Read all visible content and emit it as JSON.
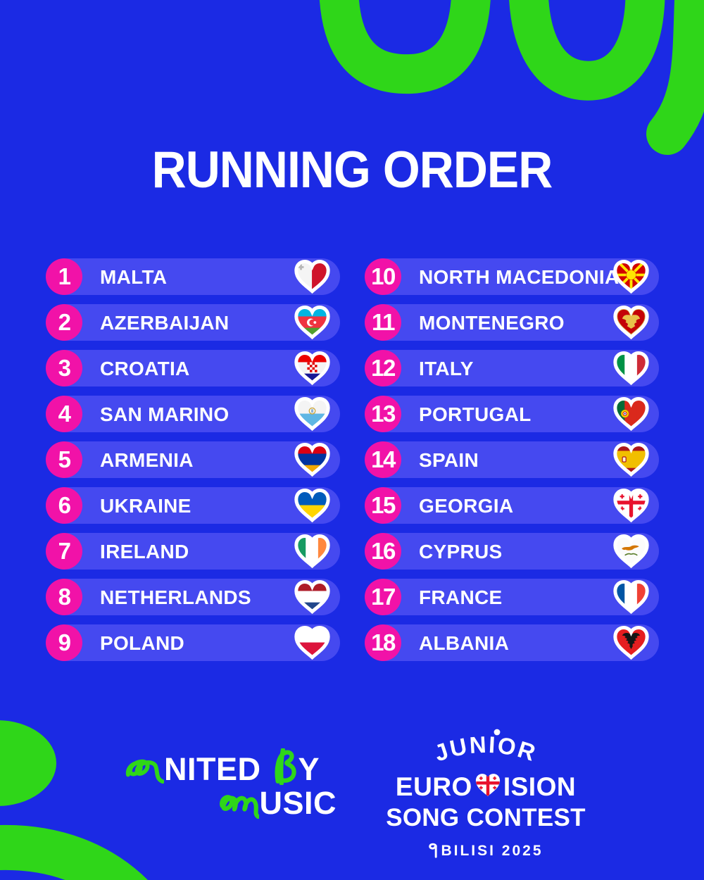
{
  "colors": {
    "background": "#1b2ae4",
    "pill": "#4549f0",
    "number_badge_pink": "#f112a8",
    "brand_green": "#2fd619",
    "text_white": "#ffffff"
  },
  "title": "RUNNING ORDER",
  "running_order": {
    "left": [
      {
        "num": "1",
        "country": "MALTA",
        "flag": "mt"
      },
      {
        "num": "2",
        "country": "AZERBAIJAN",
        "flag": "az"
      },
      {
        "num": "3",
        "country": "CROATIA",
        "flag": "hr"
      },
      {
        "num": "4",
        "country": "SAN MARINO",
        "flag": "sm"
      },
      {
        "num": "5",
        "country": "ARMENIA",
        "flag": "am"
      },
      {
        "num": "6",
        "country": "UKRAINE",
        "flag": "ua"
      },
      {
        "num": "7",
        "country": "IRELAND",
        "flag": "ie"
      },
      {
        "num": "8",
        "country": "NETHERLANDS",
        "flag": "nl"
      },
      {
        "num": "9",
        "country": "POLAND",
        "flag": "pl"
      }
    ],
    "right": [
      {
        "num": "10",
        "country": "NORTH MACEDONIA",
        "flag": "mk"
      },
      {
        "num": "11",
        "country": "MONTENEGRO",
        "flag": "me"
      },
      {
        "num": "12",
        "country": "ITALY",
        "flag": "it"
      },
      {
        "num": "13",
        "country": "PORTUGAL",
        "flag": "pt"
      },
      {
        "num": "14",
        "country": "SPAIN",
        "flag": "es"
      },
      {
        "num": "15",
        "country": "GEORGIA",
        "flag": "ge"
      },
      {
        "num": "16",
        "country": "CYPRUS",
        "flag": "cy"
      },
      {
        "num": "17",
        "country": "FRANCE",
        "flag": "fr"
      },
      {
        "num": "18",
        "country": "ALBANIA",
        "flag": "al"
      }
    ]
  },
  "flags": {
    "mt": {
      "type": "v",
      "stripes": [
        "#f4f4f4",
        "#cf142b"
      ],
      "emblem": "mt-cross"
    },
    "az": {
      "type": "h",
      "stripes": [
        "#00b5e2",
        "#ef3340",
        "#509e2f"
      ],
      "emblem": "crescent"
    },
    "hr": {
      "type": "h",
      "stripes": [
        "#ec0000",
        "#f4f4f4",
        "#171796"
      ],
      "emblem": "hr-shield"
    },
    "sm": {
      "type": "h",
      "stripes": [
        "#f4f4f4",
        "#5eb6e4"
      ],
      "emblem": "sm-emblem"
    },
    "am": {
      "type": "h",
      "stripes": [
        "#d90012",
        "#0033a0",
        "#f2a800"
      ]
    },
    "ua": {
      "type": "h",
      "stripes": [
        "#005bbb",
        "#ffd500"
      ]
    },
    "ie": {
      "type": "v",
      "stripes": [
        "#169b62",
        "#ffffff",
        "#ff883e"
      ]
    },
    "nl": {
      "type": "h",
      "stripes": [
        "#ae1c28",
        "#ffffff",
        "#21468b"
      ]
    },
    "pl": {
      "type": "h",
      "stripes": [
        "#ffffff",
        "#dc143c"
      ]
    },
    "mk": {
      "type": "solid",
      "stripes": [
        "#d20000"
      ],
      "emblem": "mk-sun"
    },
    "me": {
      "type": "solid",
      "stripes": [
        "#c40308"
      ],
      "emblem": "me-eagle",
      "rim": "#d8b04a"
    },
    "it": {
      "type": "v",
      "stripes": [
        "#009246",
        "#ffffff",
        "#ce2b37"
      ]
    },
    "pt": {
      "type": "v",
      "stripes": [
        "#046a38",
        "#da291c",
        "#da291c"
      ],
      "emblem": "pt-emblem"
    },
    "es": {
      "type": "h",
      "stripes": [
        "#aa151b",
        "#f1bf00",
        "#f1bf00",
        "#aa151b"
      ],
      "emblem": "es-emblem"
    },
    "ge": {
      "type": "solid",
      "stripes": [
        "#ffffff"
      ],
      "emblem": "ge-cross"
    },
    "cy": {
      "type": "solid",
      "stripes": [
        "#fbfbfb"
      ],
      "emblem": "cy-map"
    },
    "fr": {
      "type": "v",
      "stripes": [
        "#0055a4",
        "#ffffff",
        "#ef4135"
      ]
    },
    "al": {
      "type": "solid",
      "stripes": [
        "#e41e20"
      ],
      "emblem": "al-eagle"
    }
  },
  "footer": {
    "united_by_music": {
      "full_label": "UNITED BY MUSIC",
      "u_icon": "u-squiggle",
      "after_u": "NITED",
      "b_icon": "b-squiggle",
      "after_b": "Y",
      "m_icon": "m-squiggle",
      "after_m": "USIC"
    },
    "jesc_logo": {
      "full_label": "JUNIOR EUROVISION SONG CONTEST TBILISI 2025",
      "junior": "JUNIOR",
      "euro_left": "EURO",
      "heart_icon": "georgia-flag-heart",
      "euro_right": "ISION",
      "song_contest": "SONG CONTEST",
      "city_t_icon": "georgian-t",
      "city_rest": "BILISI 2025"
    }
  }
}
